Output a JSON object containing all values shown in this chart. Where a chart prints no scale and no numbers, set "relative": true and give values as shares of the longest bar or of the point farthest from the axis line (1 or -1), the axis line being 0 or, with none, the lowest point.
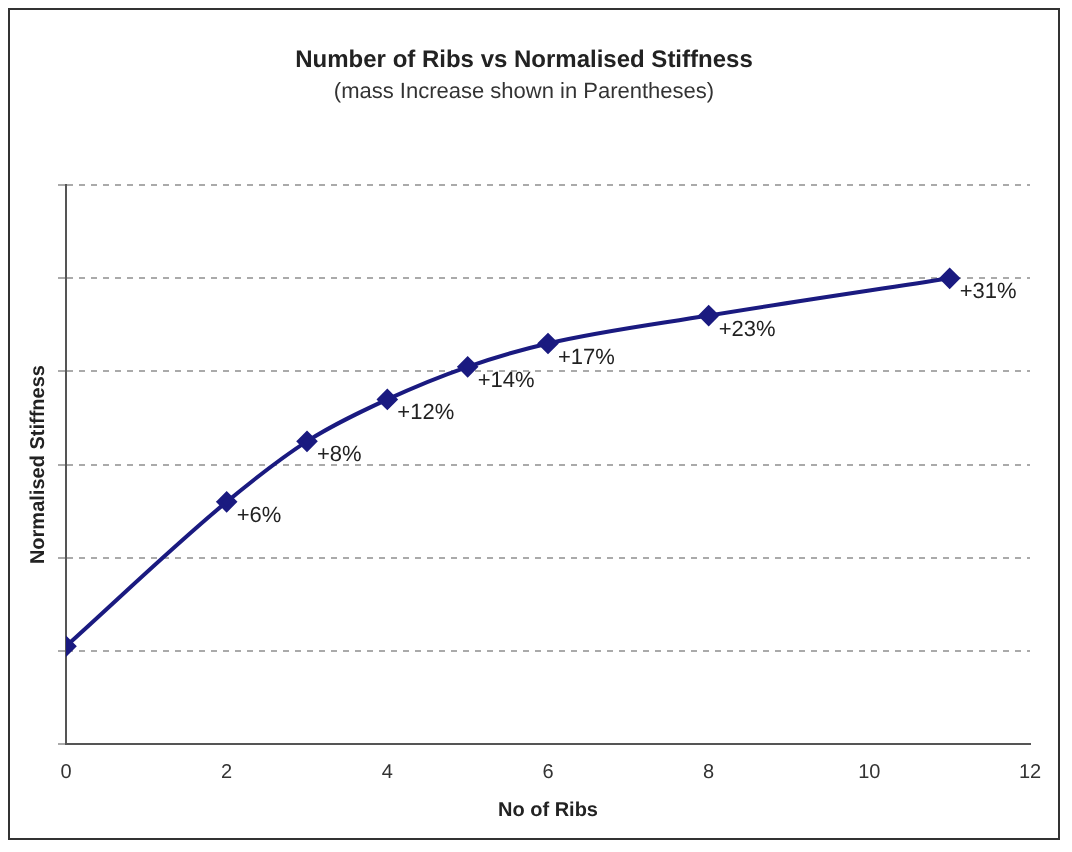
{
  "chart_data": {
    "type": "line",
    "title": "Number of Ribs vs Normalised Stiffness",
    "subtitle": "(mass Increase shown in Parentheses)",
    "xlabel": "No of Ribs",
    "ylabel": "Normalised Stiffness",
    "relative": true,
    "x": [
      0,
      2,
      3,
      4,
      5,
      6,
      8,
      11
    ],
    "xlim": [
      0,
      12
    ],
    "xticks": [
      0,
      2,
      4,
      6,
      8,
      10,
      12
    ],
    "series": [
      {
        "color": "#1a1a80",
        "values": [
          0.21,
          0.52,
          0.65,
          0.74,
          0.81,
          0.86,
          0.92,
          1
        ]
      }
    ],
    "annotations": [
      {
        "text": "+6%",
        "x": 2,
        "y": 0.52
      },
      {
        "text": "+8%",
        "x": 3,
        "y": 0.65
      },
      {
        "text": "+12%",
        "x": 4,
        "y": 0.74
      },
      {
        "text": "+14%",
        "x": 5,
        "y": 0.81
      },
      {
        "text": "+17%",
        "x": 6,
        "y": 0.86
      },
      {
        "text": "+23%",
        "x": 8,
        "y": 0.92
      },
      {
        "text": "+31%",
        "x": 11,
        "y": 1
      }
    ],
    "marker": "diamond",
    "line_style": "solid",
    "grid": "y",
    "legend": false,
    "tick_labels": "x"
  }
}
